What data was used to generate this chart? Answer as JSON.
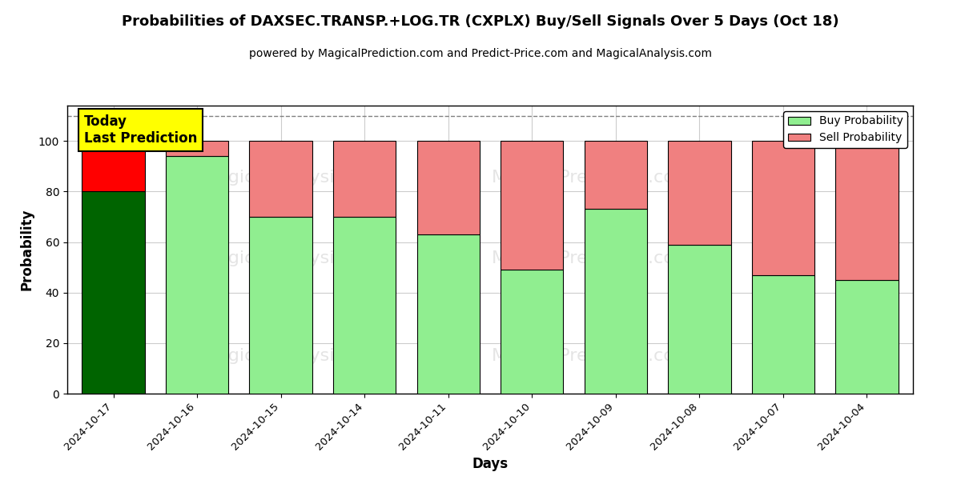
{
  "title": "Probabilities of DAXSEC.TRANSP.+LOG.TR (CXPLX) Buy/Sell Signals Over 5 Days (Oct 18)",
  "subtitle": "powered by MagicalPrediction.com and Predict-Price.com and MagicalAnalysis.com",
  "xlabel": "Days",
  "ylabel": "Probability",
  "dates": [
    "2024-10-17",
    "2024-10-16",
    "2024-10-15",
    "2024-10-14",
    "2024-10-11",
    "2024-10-10",
    "2024-10-09",
    "2024-10-08",
    "2024-10-07",
    "2024-10-04"
  ],
  "buy_probs": [
    80,
    94,
    70,
    70,
    63,
    49,
    73,
    59,
    47,
    45
  ],
  "sell_probs": [
    20,
    6,
    30,
    30,
    37,
    51,
    27,
    41,
    53,
    55
  ],
  "buy_colors": [
    "#006400",
    "#90EE90",
    "#90EE90",
    "#90EE90",
    "#90EE90",
    "#90EE90",
    "#90EE90",
    "#90EE90",
    "#90EE90",
    "#90EE90"
  ],
  "sell_colors": [
    "#FF0000",
    "#F08080",
    "#F08080",
    "#F08080",
    "#F08080",
    "#F08080",
    "#F08080",
    "#F08080",
    "#F08080",
    "#F08080"
  ],
  "legend_buy_color": "#90EE90",
  "legend_sell_color": "#F08080",
  "ylim": [
    0,
    114
  ],
  "yticks": [
    0,
    20,
    40,
    60,
    80,
    100
  ],
  "dashed_line_y": 110,
  "today_box_color": "#FFFF00",
  "today_label": "Today\nLast Prediction",
  "background_color": "#ffffff",
  "grid_color": "#cccccc",
  "bar_width": 0.75
}
